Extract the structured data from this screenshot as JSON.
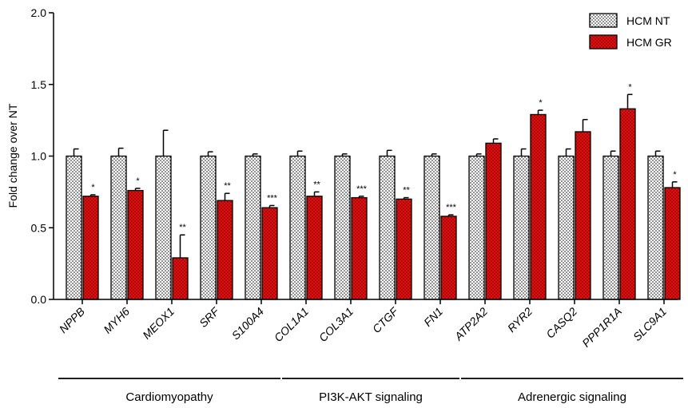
{
  "chart_data": {
    "type": "bar",
    "ylabel": "Fold change over NT",
    "ylim": [
      0,
      2.0
    ],
    "yticks": [
      "0.0",
      "0.5",
      "1.0",
      "1.5",
      "2.0"
    ],
    "legend_position": "top-right",
    "categories": [
      "NPPB",
      "MYH6",
      "MEOX1",
      "SRF",
      "S100A4",
      "COL1A1",
      "COL3A1",
      "CTGF",
      "FN1",
      "ATP2A2",
      "RYR2",
      "CASQ2",
      "PPP1R1A",
      "SLC9A1"
    ],
    "series": [
      {
        "name": "HCM NT",
        "color": "#ffffff",
        "pattern": "dotted",
        "values": [
          1.0,
          1.0,
          1.0,
          1.0,
          1.0,
          1.0,
          1.0,
          1.0,
          1.0,
          1.0,
          1.0,
          1.0,
          1.0,
          1.0
        ],
        "errors": [
          0.05,
          0.055,
          0.18,
          0.03,
          0.015,
          0.035,
          0.015,
          0.04,
          0.015,
          0.015,
          0.05,
          0.05,
          0.035,
          0.035
        ]
      },
      {
        "name": "HCM GR",
        "color": "#e01010",
        "pattern": "dotted",
        "values": [
          0.72,
          0.76,
          0.29,
          0.69,
          0.64,
          0.72,
          0.71,
          0.7,
          0.58,
          1.09,
          1.29,
          1.17,
          1.33,
          0.78
        ],
        "errors": [
          0.01,
          0.015,
          0.16,
          0.05,
          0.015,
          0.03,
          0.01,
          0.01,
          0.01,
          0.03,
          0.03,
          0.085,
          0.1,
          0.04
        ]
      }
    ],
    "significance": [
      "*",
      "*",
      "**",
      "**",
      "***",
      "**",
      "***",
      "**",
      "***",
      "",
      "*",
      "",
      "*",
      "*"
    ],
    "groups": [
      {
        "label": "Cardiomyopathy",
        "from": 0,
        "to": 4
      },
      {
        "label": "PI3K-AKT signaling",
        "from": 5,
        "to": 8
      },
      {
        "label": "Adrenergic signaling",
        "from": 9,
        "to": 13
      }
    ]
  }
}
